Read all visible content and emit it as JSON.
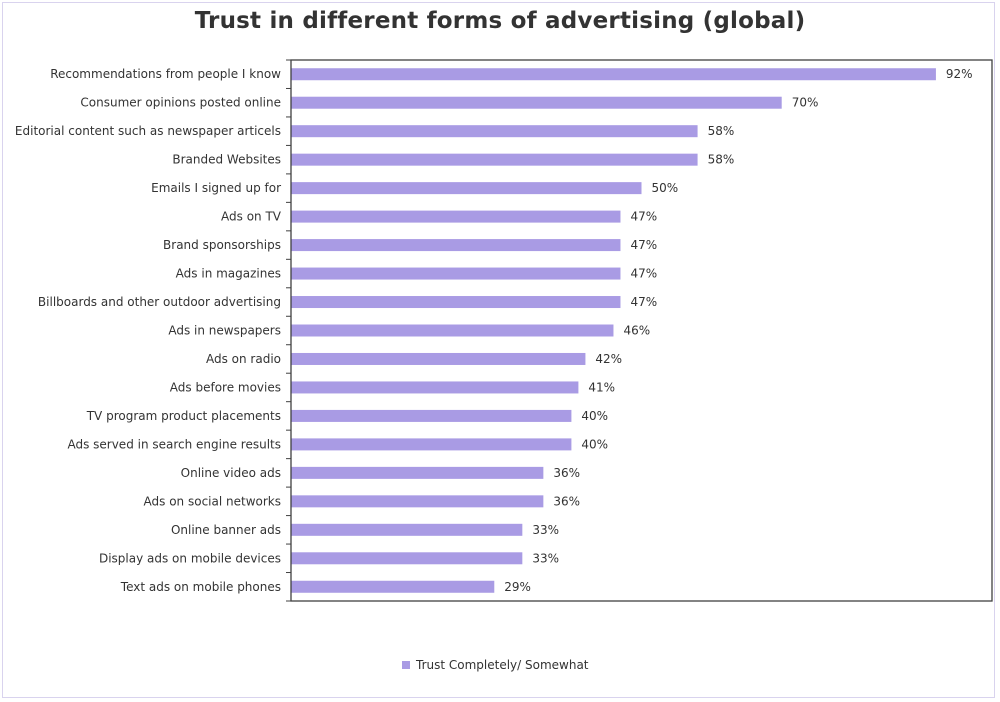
{
  "chart_data": {
    "type": "bar",
    "orientation": "horizontal",
    "title": "Trust in different forms of advertising (global)",
    "categories": [
      "Recommendations from people I know",
      "Consumer opinions posted online",
      "Editorial content such as newspaper articels",
      "Branded Websites",
      "Emails I signed up for",
      "Ads on TV",
      "Brand sponsorships",
      "Ads in magazines",
      "Billboards and other outdoor advertising",
      "Ads in newspapers",
      "Ads on radio",
      "Ads before movies",
      "TV program product placements",
      "Ads served in search engine results",
      "Online video ads",
      "Ads on social networks",
      "Online banner ads",
      "Display ads on mobile devices",
      "Text ads on mobile phones"
    ],
    "series": [
      {
        "name": "Trust Completely/ Somewhat",
        "values": [
          92,
          70,
          58,
          58,
          50,
          47,
          47,
          47,
          47,
          46,
          42,
          41,
          40,
          40,
          36,
          36,
          33,
          33,
          29
        ],
        "labels": [
          "92%",
          "70%",
          "58%",
          "58%",
          "50%",
          "47%",
          "47%",
          "47%",
          "47%",
          "46%",
          "42%",
          "41%",
          "40%",
          "40%",
          "36%",
          "36%",
          "33%",
          "33%",
          "29%"
        ]
      }
    ],
    "xlim": [
      0,
      100
    ],
    "grid": false,
    "legend_position": "bottom-center",
    "colors": {
      "bar": "#a99be4",
      "axis": "#404040",
      "text": "#333333"
    }
  }
}
